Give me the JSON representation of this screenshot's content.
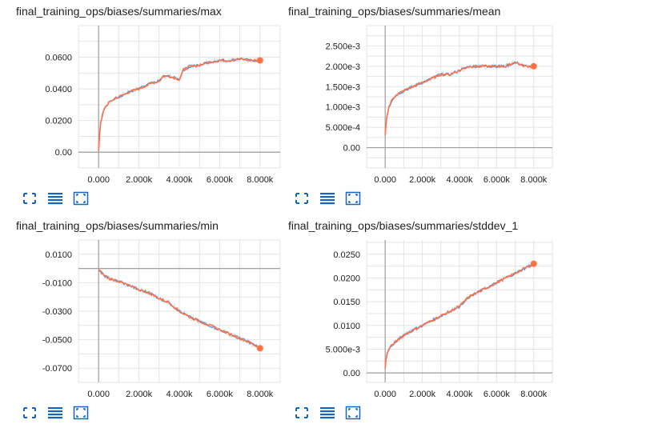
{
  "colors": {
    "series": "#ff7043",
    "smoothed_underlay": "#4a90d9",
    "raw_light": "#c9def5",
    "grid": "#e4e4e4",
    "axis": "#9e9e9e",
    "icon": "#1565c0"
  },
  "toolbar": {
    "icons": [
      "expand-icon",
      "list-icon",
      "fit-domain-icon"
    ]
  },
  "charts": [
    {
      "title": "final_training_ops/biases/summaries/max",
      "yticks": [
        "0.00",
        "0.0200",
        "0.0400",
        "0.0600"
      ],
      "xticks": [
        "0.000",
        "2.000k",
        "4.000k",
        "6.000k",
        "8.000k"
      ]
    },
    {
      "title": "final_training_ops/biases/summaries/mean",
      "yticks": [
        "0.00",
        "5.000e-4",
        "1.000e-3",
        "1.500e-3",
        "2.000e-3",
        "2.500e-3"
      ],
      "xticks": [
        "0.000",
        "2.000k",
        "4.000k",
        "6.000k",
        "8.000k"
      ]
    },
    {
      "title": "final_training_ops/biases/summaries/min",
      "yticks": [
        "0.0100",
        "-0.0100",
        "-0.0300",
        "-0.0500",
        "-0.0700"
      ],
      "xticks": [
        "0.000",
        "2.000k",
        "4.000k",
        "6.000k",
        "8.000k"
      ]
    },
    {
      "title": "final_training_ops/biases/summaries/stddev_1",
      "yticks": [
        "0.00",
        "5.000e-3",
        "0.0100",
        "0.0150",
        "0.0200",
        "0.0250"
      ],
      "xticks": [
        "0.000",
        "2.000k",
        "4.000k",
        "6.000k",
        "8.000k"
      ]
    }
  ],
  "chart_data": [
    {
      "type": "line",
      "title": "final_training_ops/biases/summaries/max",
      "xlim": [
        -1000,
        9000
      ],
      "ylim": [
        -0.01,
        0.08
      ],
      "yticks": [
        0,
        0.02,
        0.04,
        0.06
      ],
      "xticks": [
        0,
        2000,
        4000,
        6000,
        8000
      ],
      "grid": true,
      "x": [
        0,
        50,
        100,
        200,
        300,
        500,
        800,
        1000,
        1500,
        2000,
        2500,
        3000,
        3200,
        3500,
        4000,
        4200,
        4500,
        5000,
        5500,
        6000,
        6500,
        7000,
        7500,
        8000
      ],
      "y": [
        0.001,
        0.012,
        0.018,
        0.024,
        0.028,
        0.031,
        0.034,
        0.035,
        0.038,
        0.04,
        0.043,
        0.045,
        0.048,
        0.048,
        0.046,
        0.052,
        0.054,
        0.055,
        0.057,
        0.058,
        0.058,
        0.059,
        0.058,
        0.058
      ]
    },
    {
      "type": "line",
      "title": "final_training_ops/biases/summaries/mean",
      "xlim": [
        -1000,
        9000
      ],
      "ylim": [
        -0.0005,
        0.003
      ],
      "yticks": [
        0,
        0.0005,
        0.001,
        0.0015,
        0.002,
        0.0025
      ],
      "xticks": [
        0,
        2000,
        4000,
        6000,
        8000
      ],
      "grid": true,
      "x": [
        0,
        50,
        100,
        200,
        400,
        600,
        1000,
        1500,
        2000,
        2500,
        3000,
        3500,
        4000,
        4500,
        5000,
        5500,
        6000,
        6500,
        7000,
        7500,
        8000
      ],
      "y": [
        0.0003,
        0.0006,
        0.0008,
        0.001,
        0.0012,
        0.0013,
        0.0014,
        0.0015,
        0.0016,
        0.0017,
        0.0018,
        0.0018,
        0.0019,
        0.002,
        0.002,
        0.002,
        0.002,
        0.002,
        0.0021,
        0.002,
        0.002
      ]
    },
    {
      "type": "line",
      "title": "final_training_ops/biases/summaries/min",
      "xlim": [
        -1000,
        9000
      ],
      "ylim": [
        -0.08,
        0.02
      ],
      "yticks": [
        0.01,
        -0.01,
        -0.03,
        -0.05,
        -0.07
      ],
      "xticks": [
        0,
        2000,
        4000,
        6000,
        8000
      ],
      "grid": true,
      "x": [
        0,
        200,
        500,
        1000,
        1500,
        2000,
        2500,
        3000,
        3500,
        4000,
        4500,
        5000,
        5500,
        6000,
        6500,
        7000,
        7500,
        8000
      ],
      "y": [
        -0.001,
        -0.004,
        -0.007,
        -0.009,
        -0.012,
        -0.015,
        -0.017,
        -0.021,
        -0.024,
        -0.03,
        -0.034,
        -0.037,
        -0.04,
        -0.043,
        -0.046,
        -0.049,
        -0.052,
        -0.056
      ]
    },
    {
      "type": "line",
      "title": "final_training_ops/biases/summaries/stddev_1",
      "xlim": [
        -1000,
        9000
      ],
      "ylim": [
        -0.002,
        0.028
      ],
      "yticks": [
        0,
        0.005,
        0.01,
        0.015,
        0.02,
        0.025
      ],
      "xticks": [
        0,
        2000,
        4000,
        6000,
        8000
      ],
      "grid": true,
      "x": [
        0,
        50,
        100,
        200,
        400,
        700,
        1000,
        1500,
        2000,
        2500,
        3000,
        3500,
        4000,
        4500,
        5000,
        5500,
        6000,
        6500,
        7000,
        7500,
        8000
      ],
      "y": [
        0.001,
        0.003,
        0.004,
        0.005,
        0.006,
        0.007,
        0.008,
        0.009,
        0.01,
        0.011,
        0.012,
        0.013,
        0.014,
        0.016,
        0.017,
        0.018,
        0.019,
        0.02,
        0.021,
        0.022,
        0.023
      ]
    }
  ]
}
